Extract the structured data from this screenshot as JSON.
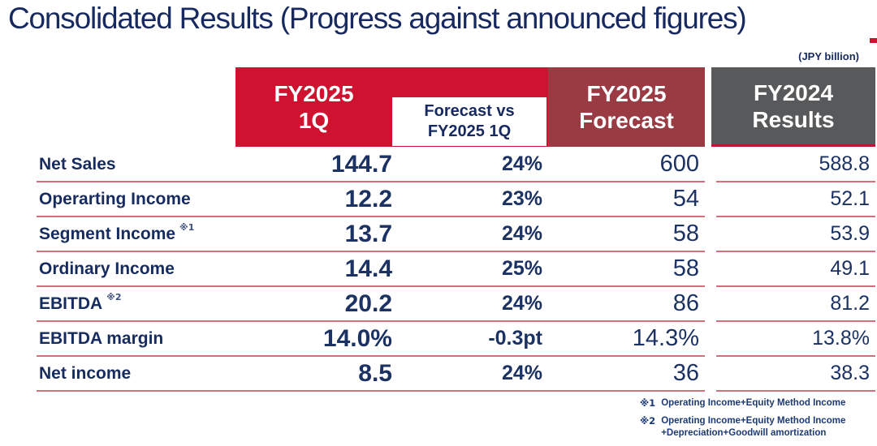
{
  "title": "Consolidated Results (Progress against announced figures)",
  "unit_note": "(JPY billion)",
  "headers": {
    "col1_line1": "FY2025",
    "col1_line2": "1Q",
    "col2_line1": "Forecast vs",
    "col2_line2": "FY2025 1Q",
    "col3_line1": "FY2025",
    "col3_line2": "Forecast",
    "col4_line1": "FY2024",
    "col4_line2": "Results"
  },
  "table": {
    "column_ids": [
      "fy2025_1q",
      "forecast_vs",
      "fy2025_forecast",
      "fy2024_results"
    ],
    "rows": [
      {
        "label": "Net Sales",
        "note": "",
        "fy2025_1q": "144.7",
        "forecast_vs": "24%",
        "fy2025_forecast": "600",
        "fy2024_results": "588.8"
      },
      {
        "label": "Operarting Income",
        "note": "",
        "fy2025_1q": "12.2",
        "forecast_vs": "23%",
        "fy2025_forecast": "54",
        "fy2024_results": "52.1"
      },
      {
        "label": "Segment Income",
        "note": "※1",
        "fy2025_1q": "13.7",
        "forecast_vs": "24%",
        "fy2025_forecast": "58",
        "fy2024_results": "53.9"
      },
      {
        "label": "Ordinary Income",
        "note": "",
        "fy2025_1q": "14.4",
        "forecast_vs": "25%",
        "fy2025_forecast": "58",
        "fy2024_results": "49.1"
      },
      {
        "label": "EBITDA",
        "note": "※2",
        "fy2025_1q": "20.2",
        "forecast_vs": "24%",
        "fy2025_forecast": "86",
        "fy2024_results": "81.2"
      },
      {
        "label": "EBITDA margin",
        "note": "",
        "fy2025_1q": "14.0%",
        "forecast_vs": "-0.3pt",
        "fy2025_forecast": "14.3%",
        "fy2024_results": "13.8%"
      },
      {
        "label": "Net income",
        "note": "",
        "fy2025_1q": "8.5",
        "forecast_vs": "24%",
        "fy2025_forecast": "36",
        "fy2024_results": "38.3"
      }
    ]
  },
  "footnotes": [
    {
      "marker": "※1",
      "text": "Operating Income+Equity Method Income"
    },
    {
      "marker": "※2",
      "text": "Operating Income+Equity Method Income\n+Depreciation+Goodwill amortization"
    }
  ],
  "colors": {
    "accent_red": "#CE1230",
    "dark_red": "#9A3B44",
    "gray_header": "#58595B",
    "navy_text": "#1B3262",
    "title_navy": "#17295E",
    "row_line": "#D4707D",
    "white": "#FFFFFF"
  }
}
